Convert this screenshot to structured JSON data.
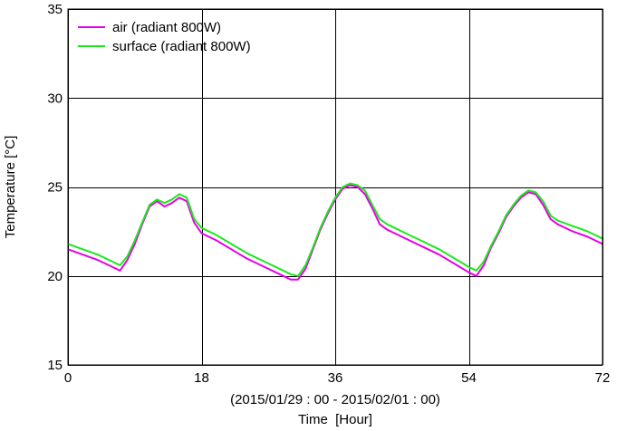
{
  "chart_data": {
    "type": "line",
    "title": "",
    "xlabel": "Time  [Hour]",
    "xlabel_sub": "(2015/01/29 : 00 - 2015/02/01 : 00)",
    "ylabel": "Temperature [°C]",
    "xlim": [
      0,
      72
    ],
    "ylim": [
      15,
      35
    ],
    "xticks": [
      0,
      18,
      36,
      54,
      72
    ],
    "yticks": [
      15,
      20,
      25,
      30,
      35
    ],
    "grid": true,
    "legend_position": "top-left",
    "series": [
      {
        "name": "air (radiant 800W)",
        "color": "#e600e6",
        "x": [
          0,
          2,
          4,
          6,
          7,
          8,
          9,
          10,
          11,
          12,
          13,
          14,
          15,
          16,
          17,
          18,
          20,
          22,
          24,
          26,
          28,
          30,
          31,
          32,
          33,
          34,
          35,
          36,
          37,
          38,
          39,
          40,
          41,
          42,
          43,
          44,
          46,
          48,
          50,
          52,
          54,
          55,
          56,
          57,
          58,
          59,
          60,
          61,
          62,
          63,
          64,
          65,
          66,
          68,
          70,
          72
        ],
        "y": [
          21.5,
          21.2,
          20.9,
          20.5,
          20.3,
          20.9,
          21.8,
          22.9,
          23.9,
          24.2,
          23.9,
          24.1,
          24.4,
          24.2,
          23.0,
          22.4,
          22.0,
          21.5,
          21.0,
          20.6,
          20.2,
          19.8,
          19.8,
          20.4,
          21.5,
          22.6,
          23.5,
          24.3,
          24.9,
          25.1,
          25.0,
          24.6,
          23.8,
          22.9,
          22.6,
          22.4,
          22.0,
          21.6,
          21.2,
          20.7,
          20.2,
          20.0,
          20.6,
          21.6,
          22.4,
          23.3,
          23.9,
          24.4,
          24.7,
          24.6,
          24.0,
          23.2,
          22.9,
          22.5,
          22.2,
          21.8
        ]
      },
      {
        "name": "surface (radiant 800W)",
        "color": "#1ee61e",
        "x": [
          0,
          2,
          4,
          6,
          7,
          8,
          9,
          10,
          11,
          12,
          13,
          14,
          15,
          16,
          17,
          18,
          20,
          22,
          24,
          26,
          28,
          30,
          31,
          32,
          33,
          34,
          35,
          36,
          37,
          38,
          39,
          40,
          41,
          42,
          43,
          44,
          46,
          48,
          50,
          52,
          54,
          55,
          56,
          57,
          58,
          59,
          60,
          61,
          62,
          63,
          64,
          65,
          66,
          68,
          70,
          72
        ],
        "y": [
          21.8,
          21.5,
          21.2,
          20.8,
          20.6,
          21.1,
          22.0,
          23.0,
          24.0,
          24.3,
          24.1,
          24.3,
          24.6,
          24.4,
          23.2,
          22.7,
          22.3,
          21.8,
          21.3,
          20.9,
          20.5,
          20.1,
          20.0,
          20.6,
          21.6,
          22.7,
          23.6,
          24.4,
          25.0,
          25.2,
          25.1,
          24.8,
          24.0,
          23.2,
          22.9,
          22.7,
          22.3,
          21.9,
          21.5,
          21.0,
          20.5,
          20.3,
          20.8,
          21.7,
          22.5,
          23.4,
          24.0,
          24.5,
          24.8,
          24.7,
          24.2,
          23.4,
          23.1,
          22.8,
          22.5,
          22.1
        ]
      }
    ]
  }
}
